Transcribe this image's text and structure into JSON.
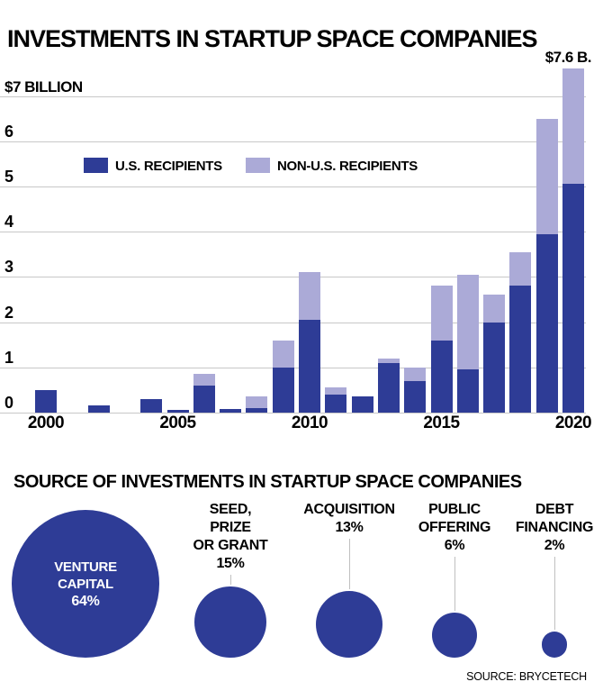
{
  "page": {
    "title": "INVESTMENTS IN STARTUP SPACE COMPANIES",
    "source": "SOURCE: BRYCETECH"
  },
  "colors": {
    "us": "#2e3c96",
    "non_us": "#abaad7",
    "grid": "#c8c8c8",
    "axis": "#7a7a7a",
    "connector": "#c0c0c0",
    "text": "#000000",
    "background": "#ffffff"
  },
  "legend": {
    "us_label": "U.S. RECIPIENTS",
    "non_us_label": "NON-U.S. RECIPIENTS"
  },
  "chart_data": [
    {
      "type": "bar",
      "stacked": true,
      "title": "INVESTMENTS IN STARTUP SPACE COMPANIES",
      "units": "billions of U.S. dollars",
      "x": [
        2000,
        2001,
        2002,
        2003,
        2004,
        2005,
        2006,
        2007,
        2008,
        2009,
        2010,
        2011,
        2012,
        2013,
        2014,
        2015,
        2016,
        2017,
        2018,
        2019,
        2020
      ],
      "series": [
        {
          "name": "U.S. RECIPIENTS",
          "color_key": "us",
          "values": [
            0.5,
            0,
            0.15,
            0,
            0.3,
            0.05,
            0.6,
            0.07,
            0.1,
            1.0,
            2.05,
            0.4,
            0.35,
            1.1,
            0.7,
            1.6,
            0.95,
            2.0,
            2.8,
            3.95,
            5.05
          ]
        },
        {
          "name": "NON-U.S. RECIPIENTS",
          "color_key": "non_us",
          "values": [
            0,
            0,
            0,
            0,
            0,
            0,
            0.25,
            0,
            0.25,
            0.6,
            1.05,
            0.15,
            0,
            0.1,
            0.3,
            1.2,
            2.1,
            0.6,
            0.75,
            2.55,
            2.55
          ]
        }
      ],
      "annotations": [
        {
          "text": "$7.6 B.",
          "x": 2020,
          "y": 7.6
        }
      ],
      "y_axis": {
        "ylim": [
          0,
          7.6
        ],
        "tick_values": [
          0,
          1,
          2,
          3,
          4,
          5,
          6,
          7
        ],
        "tick_labels": [
          "0",
          "1",
          "2",
          "3",
          "4",
          "5",
          "6",
          "$7 BILLION"
        ]
      },
      "x_ticks": [
        2000,
        2005,
        2010,
        2015,
        2020
      ],
      "grid": true,
      "legend_position": "upper-left-inside"
    },
    {
      "type": "bubble",
      "title": "SOURCE OF INVESTMENTS IN STARTUP SPACE COMPANIES",
      "units": "percent of total",
      "items": [
        {
          "name": "VENTURE CAPITAL",
          "label_lines": [
            "VENTURE",
            "CAPITAL"
          ],
          "pct": "64%",
          "value": 64,
          "text_inside": true
        },
        {
          "name": "SEED, PRIZE OR GRANT",
          "label_lines": [
            "SEED,",
            "PRIZE",
            "OR GRANT"
          ],
          "pct": "15%",
          "value": 15,
          "text_inside": false
        },
        {
          "name": "ACQUISITION",
          "label_lines": [
            "ACQUISITION"
          ],
          "pct": "13%",
          "value": 13,
          "text_inside": false
        },
        {
          "name": "PUBLIC OFFERING",
          "label_lines": [
            "PUBLIC",
            "OFFERING"
          ],
          "pct": "6%",
          "value": 6,
          "text_inside": false
        },
        {
          "name": "DEBT FINANCING",
          "label_lines": [
            "DEBT",
            "FINANCING"
          ],
          "pct": "2%",
          "value": 2,
          "text_inside": false
        }
      ]
    }
  ]
}
